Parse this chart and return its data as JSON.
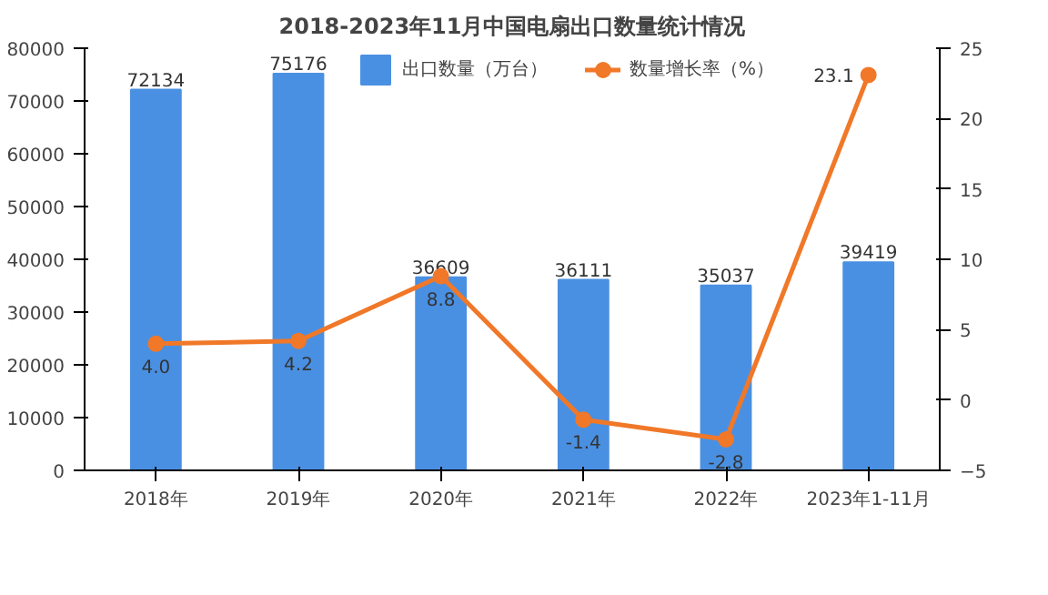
{
  "chart_data": {
    "type": "bar",
    "title": "2018-2023年11月中国电扇出口数量统计情况",
    "categories": [
      "2018年",
      "2019年",
      "2020年",
      "2021年",
      "2022年",
      "2023年1-11月"
    ],
    "series": [
      {
        "name": "出口数量（万台）",
        "type": "bar",
        "color": "#4a90e2",
        "values": [
          72134,
          75176,
          36609,
          36111,
          35037,
          39419
        ]
      },
      {
        "name": "数量增长率（%）",
        "type": "line",
        "axis": "y2",
        "color": "#f07828",
        "marker": "circle",
        "values": [
          4.0,
          4.2,
          8.8,
          -1.4,
          -2.8,
          23.1
        ],
        "value_labels": [
          "4.0",
          "4.2",
          "8.8",
          "-1.4",
          "-2.8",
          "23.1"
        ]
      }
    ],
    "ylim": [
      0,
      80000
    ],
    "yticks": [
      0,
      10000,
      20000,
      30000,
      40000,
      50000,
      60000,
      70000,
      80000
    ],
    "y2lim": [
      -5,
      25
    ],
    "y2ticks": [
      -5,
      0,
      5,
      10,
      15,
      20,
      25
    ],
    "data_labels": true,
    "legend": "top",
    "grid": false
  }
}
